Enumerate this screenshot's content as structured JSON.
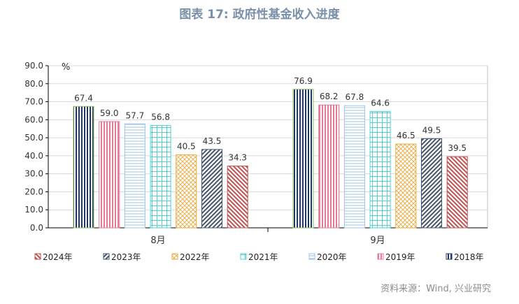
{
  "title": "图表 17: 政府性基金收入进度",
  "source": "资料来源：Wind, 兴业研究",
  "chart_data": {
    "type": "bar",
    "title": "图表 17: 政府性基金收入进度",
    "ylabel": "%",
    "ylim": [
      0,
      90
    ],
    "yticks": [
      "0.0",
      "10.0",
      "20.0",
      "30.0",
      "40.0",
      "50.0",
      "60.0",
      "70.0",
      "80.0",
      "90.0"
    ],
    "grid": true,
    "legend": "bottom",
    "categories": [
      "8月",
      "9月"
    ],
    "series": [
      {
        "name": "2018年",
        "values": [
          67.4,
          76.9
        ],
        "color": "#1f3864",
        "pattern": "vertical-stripes"
      },
      {
        "name": "2019年",
        "values": [
          59.0,
          68.2
        ],
        "color": "#e87a96",
        "pattern": "vertical-stripes"
      },
      {
        "name": "2020年",
        "values": [
          57.7,
          67.8
        ],
        "color": "#9dc3e6",
        "pattern": "horizontal-stripes"
      },
      {
        "name": "2021年",
        "values": [
          56.8,
          64.6
        ],
        "color": "#4fd1d1",
        "pattern": "grid"
      },
      {
        "name": "2022年",
        "values": [
          40.5,
          46.5
        ],
        "color": "#e8a838",
        "pattern": "crosshatch"
      },
      {
        "name": "2023年",
        "values": [
          43.5,
          49.5
        ],
        "color": "#44546a",
        "pattern": "diagonal-up"
      },
      {
        "name": "2024年",
        "values": [
          34.3,
          39.5
        ],
        "color": "#c0504d",
        "pattern": "diagonal-down"
      }
    ],
    "legend_order": [
      "2024年",
      "2023年",
      "2022年",
      "2021年",
      "2020年",
      "2019年",
      "2018年"
    ]
  }
}
